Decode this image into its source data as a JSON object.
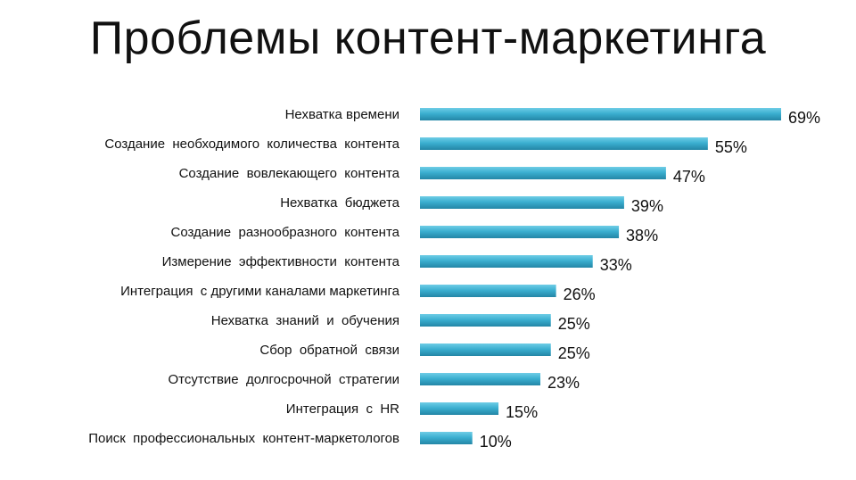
{
  "slide": {
    "title": "Проблемы контент-маркетинга"
  },
  "colors": {
    "bar_light": "#6FCDE6",
    "bar_main": "#3BAFD0",
    "bar_dark": "#2386A6"
  },
  "chart_data": {
    "type": "bar",
    "orientation": "horizontal",
    "title": "",
    "xlabel": "",
    "ylabel": "",
    "xlim": [
      0,
      70
    ],
    "grid": false,
    "legend": "none",
    "value_suffix": "%",
    "categories": [
      "Нехватка времени",
      "Создание  необходимого  количества  контента",
      "Создание  вовлекающего  контента",
      "Нехватка  бюджета",
      "Создание  разнообразного  контента",
      "Измерение  эффективности  контента",
      "Интеграция  с другими каналами маркетинга",
      "Нехватка  знаний  и  обучения",
      "Сбор  обратной  связи",
      "Отсутствие  долгосрочной  стратегии",
      "Интеграция  с  HR",
      "Поиск  профессиональных  контент-маркетологов"
    ],
    "values": [
      69,
      55,
      47,
      39,
      38,
      33,
      26,
      25,
      25,
      23,
      15,
      10
    ],
    "value_labels": [
      "69%",
      "55%",
      "47%",
      "39%",
      "38%",
      "33%",
      "26%",
      "25%",
      "25%",
      "23%",
      "15%",
      "10%"
    ]
  }
}
